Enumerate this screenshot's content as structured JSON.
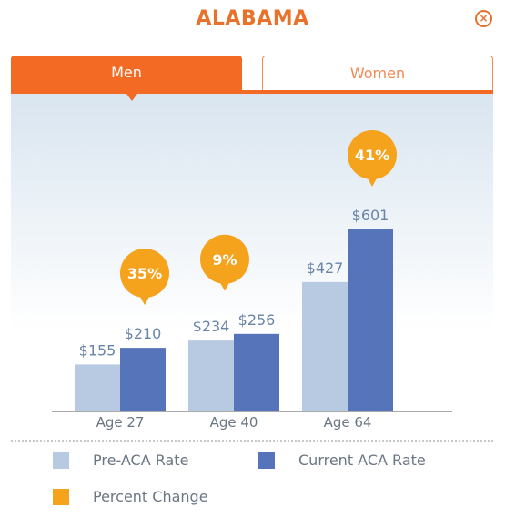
{
  "header": {
    "title": "ALABAMA",
    "close_glyph": "×",
    "close_icon": "close-circle-icon"
  },
  "tabs": [
    {
      "label": "Men",
      "active": true
    },
    {
      "label": "Women",
      "active": false
    }
  ],
  "colors": {
    "accent": "#f26a23",
    "pre_aca": "#b8c9e2",
    "current_aca": "#5674b9",
    "percent": "#f5a21c",
    "value_label": "#6a84a8"
  },
  "legend": {
    "pre_aca": "Pre-ACA Rate",
    "current_aca": "Current ACA Rate",
    "percent_change": "Percent Change"
  },
  "chart_data": {
    "type": "bar",
    "categories": [
      "Age 27",
      "Age 40",
      "Age 64"
    ],
    "series": [
      {
        "name": "Pre-ACA Rate",
        "values": [
          155,
          234,
          427
        ],
        "labels": [
          "$155",
          "$234",
          "$427"
        ]
      },
      {
        "name": "Current ACA Rate",
        "values": [
          210,
          256,
          601
        ],
        "labels": [
          "$210",
          "$256",
          "$601"
        ]
      }
    ],
    "percent_change": [
      "35%",
      "9%",
      "41%"
    ],
    "ylim": [
      0,
      601
    ],
    "legend_position": "bottom",
    "grid": false
  }
}
